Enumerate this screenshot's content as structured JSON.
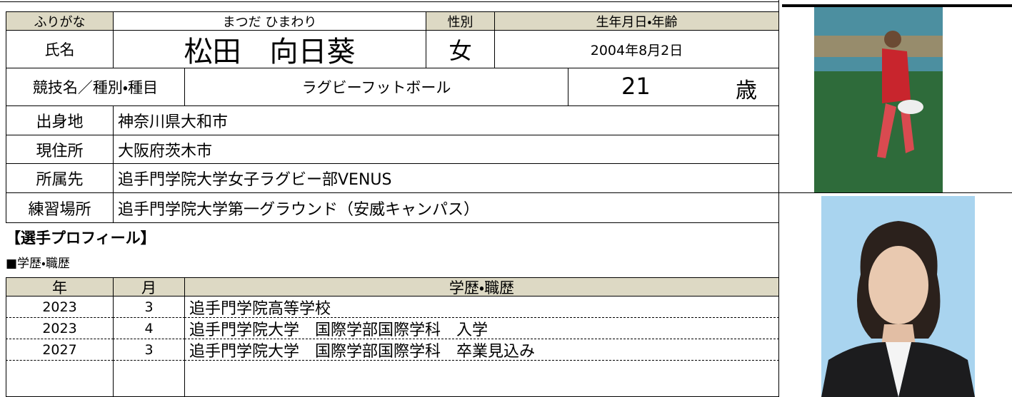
{
  "header": {
    "furigana_label": "ふりがな",
    "furigana": "まつだ ひまわり",
    "gender_label": "性別",
    "birth_label": "生年月日・年齢"
  },
  "name_row": {
    "label": "氏名",
    "name": "松田　向日葵",
    "gender": "女",
    "birthdate": "2004年8月2日"
  },
  "sport_row": {
    "label": "競技名／種別・種目",
    "sport": "ラグビーフットボール",
    "age": "21",
    "age_unit": "歳"
  },
  "info": [
    {
      "label": "出身地",
      "value": "神奈川県大和市"
    },
    {
      "label": "現住所",
      "value": "大阪府茨木市"
    },
    {
      "label": "所属先",
      "value": "追手門学院大学女子ラグビー部VENUS"
    },
    {
      "label": "練習場所",
      "value": "追手門学院大学第一グラウンド（安威キャンパス）"
    }
  ],
  "section_title": "【選手プロフィール】",
  "subsection_title": "■学歴・職歴",
  "table": {
    "header": [
      "年",
      "月",
      "学歴・職歴"
    ],
    "rows": [
      [
        "2023",
        "3",
        "追手門学院高等学校"
      ],
      [
        "2023",
        "4",
        "追手門学院大学　国際学部国際学科　入学"
      ],
      [
        "2027",
        "3",
        "追手門学院大学　国際学部国際学科　卒業見込み"
      ]
    ]
  }
}
